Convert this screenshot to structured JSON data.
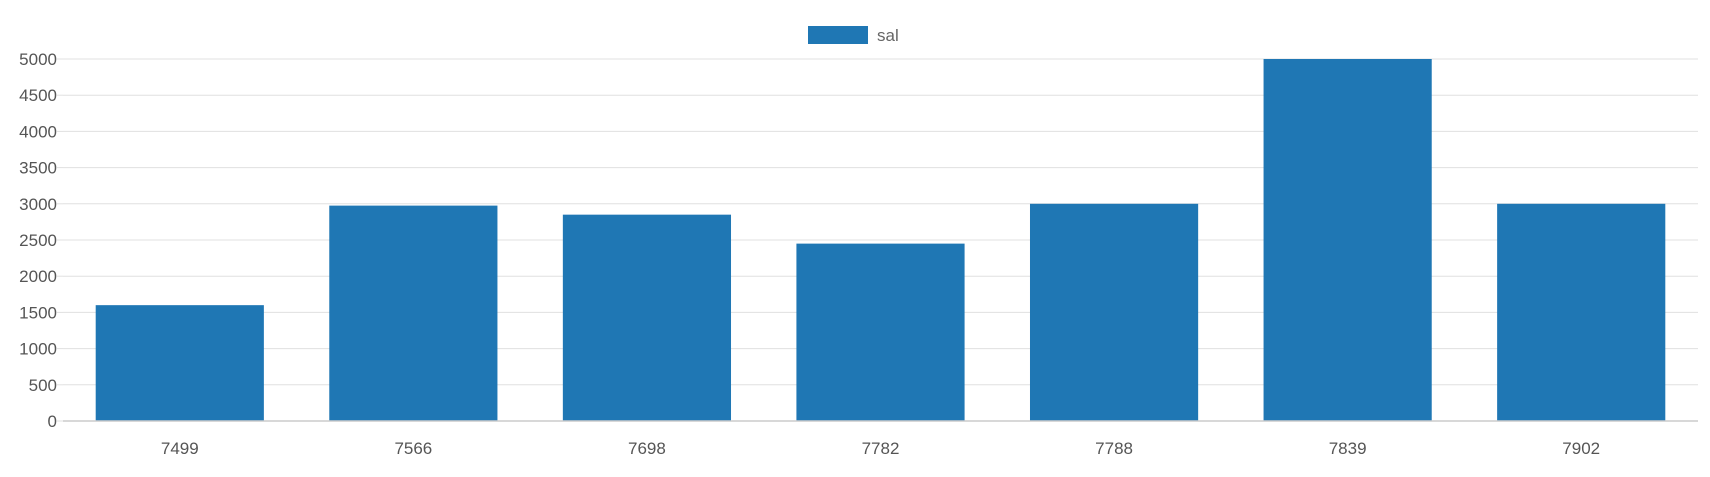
{
  "chart_data": {
    "type": "bar",
    "categories": [
      "7499",
      "7566",
      "7698",
      "7782",
      "7788",
      "7839",
      "7902"
    ],
    "series": [
      {
        "name": "sal",
        "values": [
          1600,
          2975,
          2850,
          2450,
          3000,
          5000,
          3000
        ],
        "color": "#1f77b4"
      }
    ],
    "title": "",
    "xlabel": "",
    "ylabel": "",
    "ylim": [
      0,
      5000
    ],
    "yticks": [
      "0",
      "500",
      "1000",
      "1500",
      "2000",
      "2500",
      "3000",
      "3500",
      "4000",
      "4500",
      "5000"
    ],
    "legend_position": "top-center",
    "grid": true
  }
}
